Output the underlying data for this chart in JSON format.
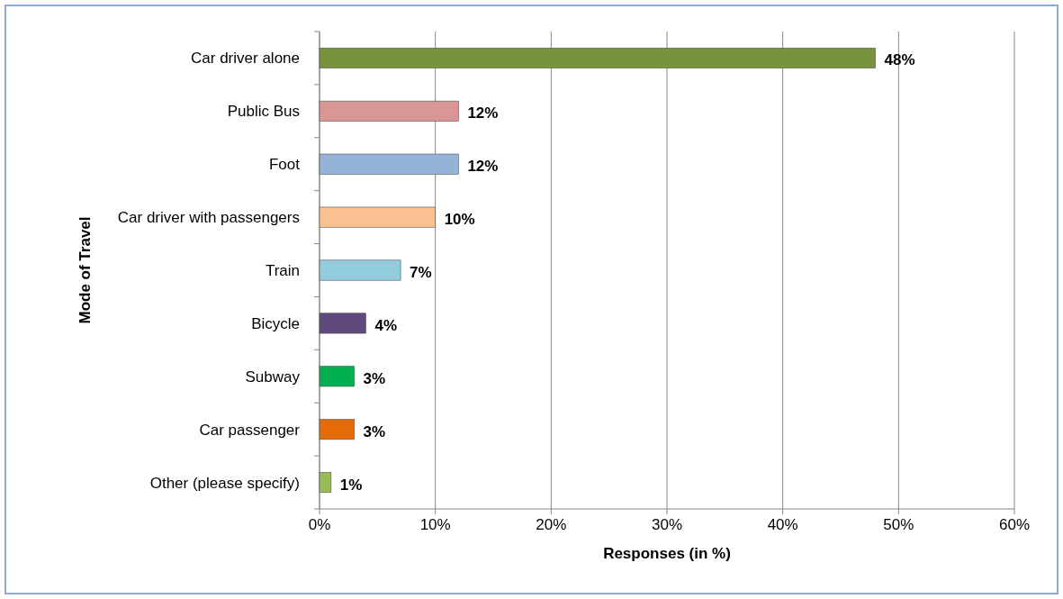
{
  "chart_data": {
    "type": "bar",
    "orientation": "horizontal",
    "xlabel": "Responses (in %)",
    "ylabel": "Mode of Travel",
    "categories": [
      "Car driver alone",
      "Public Bus",
      "Foot",
      "Car driver with passengers",
      "Train",
      "Bicycle",
      "Subway",
      "Car passenger",
      "Other (please specify)"
    ],
    "values": [
      48,
      12,
      12,
      10,
      7,
      4,
      3,
      3,
      1
    ],
    "colors": [
      "#77933c",
      "#d99694",
      "#95b3d7",
      "#fac090",
      "#93cddd",
      "#604a7b",
      "#00b050",
      "#e36c09",
      "#9bbb59"
    ],
    "xlim": [
      0,
      60
    ],
    "xticks": [
      {
        "value": 0,
        "label": "0%"
      },
      {
        "value": 10,
        "label": "10%"
      },
      {
        "value": 20,
        "label": "20%"
      },
      {
        "value": 30,
        "label": "30%"
      },
      {
        "value": 40,
        "label": "40%"
      },
      {
        "value": 50,
        "label": "50%"
      },
      {
        "value": 60,
        "label": "60%"
      }
    ],
    "value_labels": [
      "48%",
      "12%",
      "12%",
      "10%",
      "7%",
      "4%",
      "3%",
      "3%",
      "1%"
    ],
    "grid": "x"
  }
}
